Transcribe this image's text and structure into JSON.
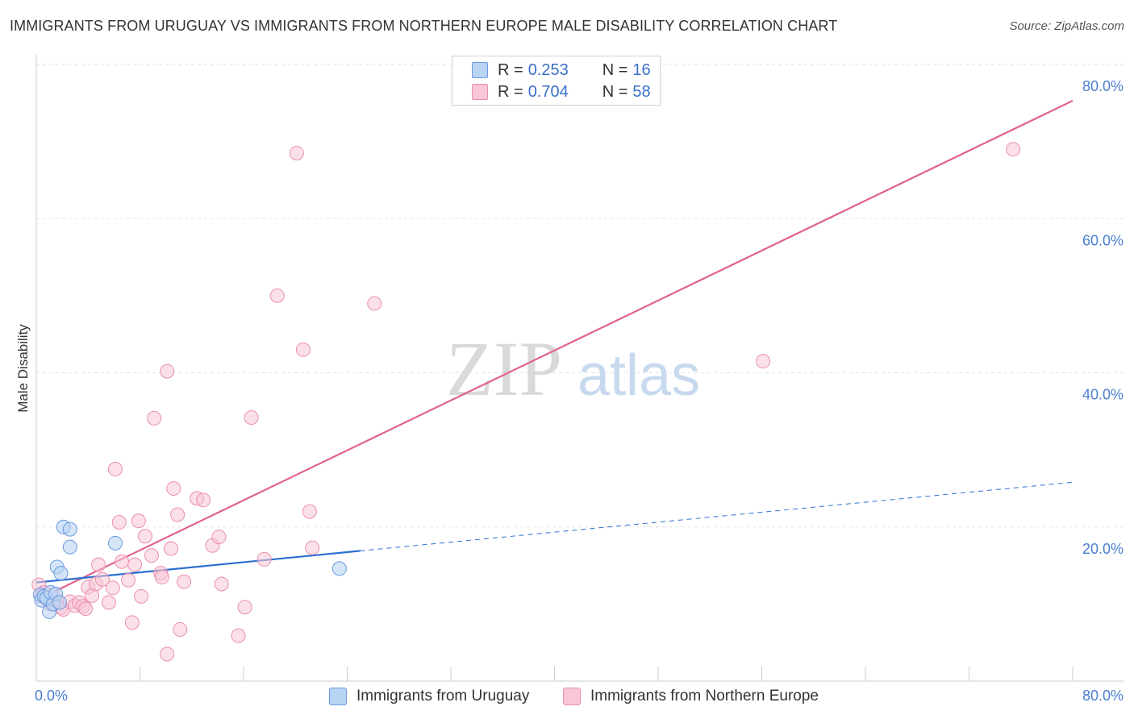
{
  "title": "IMMIGRANTS FROM URUGUAY VS IMMIGRANTS FROM NORTHERN EUROPE MALE DISABILITY CORRELATION CHART",
  "source": "Source: ZipAtlas.com",
  "watermark": {
    "zip": "ZIP",
    "atlas": "atlas"
  },
  "legend": {
    "rows": [
      {
        "r_label": "R =",
        "r_value": "0.253",
        "n_label": "N =",
        "n_value": "16"
      },
      {
        "r_label": "R =",
        "r_value": "0.704",
        "n_label": "N =",
        "n_value": "58"
      }
    ]
  },
  "bottom_legend": {
    "uruguay": "Immigrants from Uruguay",
    "northern_europe": "Immigrants from Northern Europe"
  },
  "colors": {
    "uruguay_fill": "#b9d3f3",
    "uruguay_stroke": "#6a9be0",
    "uruguay_line": "#2c6fd1",
    "ne_fill": "#f8c6d6",
    "ne_stroke": "#ea8fae",
    "ne_line": "#e0628f",
    "tick_color": "#4a7fd0",
    "grid": "#e3e3e3"
  },
  "chart_data": {
    "type": "scatter",
    "title": "IMMIGRANTS FROM URUGUAY VS IMMIGRANTS FROM NORTHERN EUROPE MALE DISABILITY CORRELATION CHART",
    "xlabel": "",
    "ylabel": "Male Disability",
    "xlim": [
      0,
      80
    ],
    "ylim": [
      0,
      80
    ],
    "x_tick_labels": [
      "0.0%",
      "80.0%"
    ],
    "y_ticks": [
      {
        "value": 20,
        "label": "20.0%"
      },
      {
        "value": 40,
        "label": "40.0%"
      },
      {
        "value": 60,
        "label": "60.0%"
      },
      {
        "value": 80,
        "label": "80.0%"
      }
    ],
    "series": [
      {
        "name": "Immigrants from Uruguay",
        "r": 0.253,
        "n": 16,
        "points": [
          {
            "x": 0.3,
            "y": 11.2
          },
          {
            "x": 0.4,
            "y": 10.5
          },
          {
            "x": 0.6,
            "y": 11.0
          },
          {
            "x": 0.8,
            "y": 10.8
          },
          {
            "x": 1.0,
            "y": 9.0
          },
          {
            "x": 1.1,
            "y": 11.5
          },
          {
            "x": 1.3,
            "y": 10.0
          },
          {
            "x": 1.5,
            "y": 11.3
          },
          {
            "x": 1.6,
            "y": 14.8
          },
          {
            "x": 1.8,
            "y": 10.2
          },
          {
            "x": 1.9,
            "y": 14.0
          },
          {
            "x": 2.1,
            "y": 20.0
          },
          {
            "x": 2.6,
            "y": 17.4
          },
          {
            "x": 2.6,
            "y": 19.7
          },
          {
            "x": 6.1,
            "y": 17.9
          },
          {
            "x": 23.4,
            "y": 14.6
          }
        ],
        "trend": {
          "x1": 0,
          "y1": 12.8,
          "x2": 25,
          "y2": 16.9,
          "dashed_to_x": 80,
          "dashed_to_y": 25.8
        }
      },
      {
        "name": "Immigrants from Northern Europe",
        "r": 0.704,
        "n": 58,
        "points": [
          {
            "x": 0.2,
            "y": 12.5
          },
          {
            "x": 0.4,
            "y": 11.0
          },
          {
            "x": 0.6,
            "y": 11.5
          },
          {
            "x": 0.9,
            "y": 10.5
          },
          {
            "x": 1.1,
            "y": 10.0
          },
          {
            "x": 1.3,
            "y": 11.2
          },
          {
            "x": 1.6,
            "y": 10.3
          },
          {
            "x": 1.9,
            "y": 9.5
          },
          {
            "x": 2.1,
            "y": 9.3
          },
          {
            "x": 2.6,
            "y": 10.3
          },
          {
            "x": 3.0,
            "y": 9.8
          },
          {
            "x": 3.3,
            "y": 10.2
          },
          {
            "x": 3.6,
            "y": 9.7
          },
          {
            "x": 3.8,
            "y": 9.4
          },
          {
            "x": 4.0,
            "y": 12.2
          },
          {
            "x": 4.3,
            "y": 11.1
          },
          {
            "x": 4.6,
            "y": 12.6
          },
          {
            "x": 4.8,
            "y": 15.1
          },
          {
            "x": 5.1,
            "y": 13.2
          },
          {
            "x": 5.6,
            "y": 10.2
          },
          {
            "x": 5.9,
            "y": 12.1
          },
          {
            "x": 6.1,
            "y": 27.5
          },
          {
            "x": 6.4,
            "y": 20.6
          },
          {
            "x": 6.6,
            "y": 15.5
          },
          {
            "x": 7.1,
            "y": 13.1
          },
          {
            "x": 7.4,
            "y": 7.6
          },
          {
            "x": 7.6,
            "y": 15.1
          },
          {
            "x": 7.9,
            "y": 20.8
          },
          {
            "x": 8.1,
            "y": 11.0
          },
          {
            "x": 8.4,
            "y": 18.8
          },
          {
            "x": 8.9,
            "y": 16.3
          },
          {
            "x": 9.1,
            "y": 34.1
          },
          {
            "x": 9.6,
            "y": 14.0
          },
          {
            "x": 9.7,
            "y": 13.5
          },
          {
            "x": 10.1,
            "y": 40.2
          },
          {
            "x": 10.1,
            "y": 3.5
          },
          {
            "x": 10.4,
            "y": 17.2
          },
          {
            "x": 10.6,
            "y": 25.0
          },
          {
            "x": 10.9,
            "y": 21.6
          },
          {
            "x": 11.1,
            "y": 6.7
          },
          {
            "x": 11.4,
            "y": 12.9
          },
          {
            "x": 12.4,
            "y": 23.7
          },
          {
            "x": 12.9,
            "y": 23.5
          },
          {
            "x": 13.6,
            "y": 17.6
          },
          {
            "x": 14.1,
            "y": 18.7
          },
          {
            "x": 14.3,
            "y": 12.6
          },
          {
            "x": 15.6,
            "y": 5.9
          },
          {
            "x": 16.1,
            "y": 9.6
          },
          {
            "x": 16.6,
            "y": 34.2
          },
          {
            "x": 17.6,
            "y": 15.8
          },
          {
            "x": 18.6,
            "y": 50.0
          },
          {
            "x": 20.1,
            "y": 68.5
          },
          {
            "x": 20.6,
            "y": 43.0
          },
          {
            "x": 21.1,
            "y": 22.0
          },
          {
            "x": 21.3,
            "y": 17.3
          },
          {
            "x": 26.1,
            "y": 49.0
          },
          {
            "x": 56.1,
            "y": 41.5
          },
          {
            "x": 75.4,
            "y": 69.0
          }
        ],
        "trend": {
          "x1": 0,
          "y1": 10.5,
          "x2": 80,
          "y2": 75.3
        }
      }
    ]
  }
}
